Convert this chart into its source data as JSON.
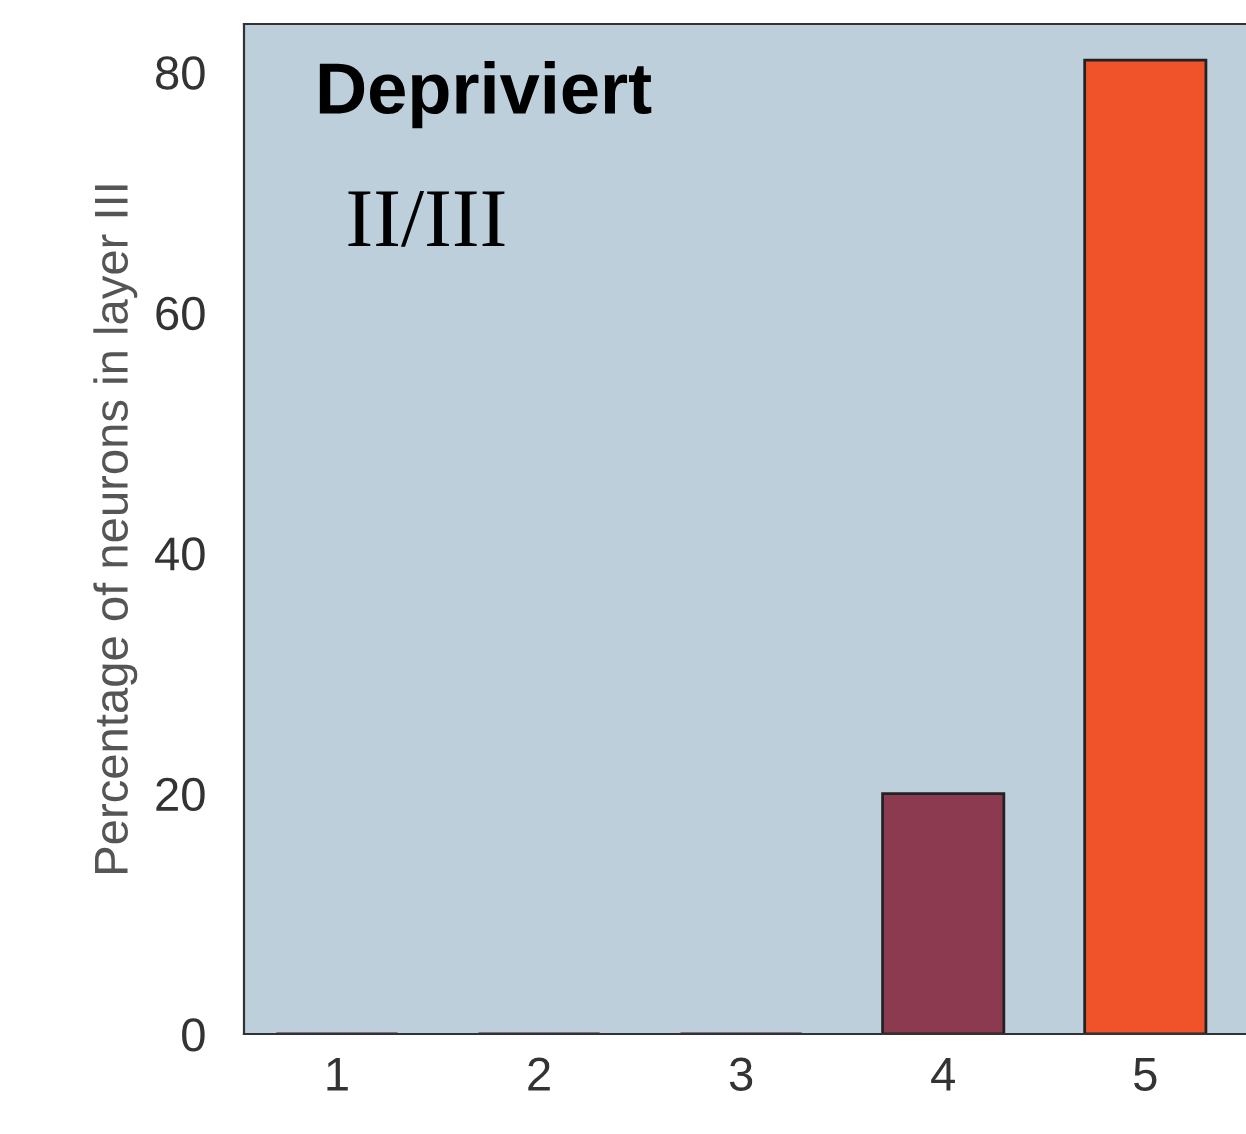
{
  "chart_data": {
    "type": "bar",
    "ylabel": "Percentage of neurons in layer III",
    "categories": [
      "1",
      "2",
      "3",
      "4",
      "5"
    ],
    "values": [
      0,
      0,
      0,
      20,
      81
    ],
    "colors": [
      "#8b3a50",
      "#8b3a50",
      "#8b3a50",
      "#8b3a50",
      "#f0522a"
    ],
    "ylim": [
      0,
      84
    ],
    "yticks": [
      0,
      20,
      40,
      60,
      80
    ],
    "grid": false,
    "legend": false,
    "annotations": [
      "Depriviert",
      "II/III"
    ]
  }
}
